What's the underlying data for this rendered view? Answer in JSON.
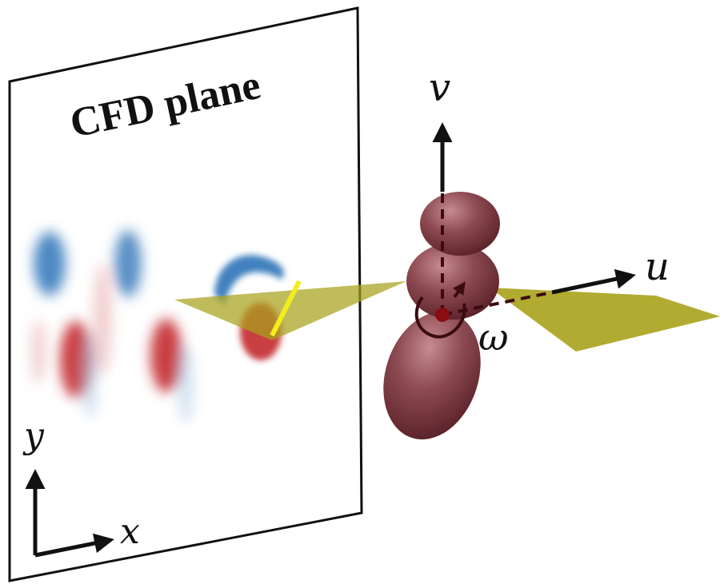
{
  "plane": {
    "title": "CFD plane"
  },
  "axes_2d": {
    "x_label": "x",
    "y_label": "y"
  },
  "body_frame": {
    "u_label": "u",
    "v_label": "v",
    "omega_label": "ω"
  },
  "colors": {
    "vortex_positive": "#c0272d",
    "vortex_negative": "#1f6fb5",
    "fin": "#b3aa1e",
    "body": "#7a3a40",
    "highlight_edge": "#f2ee1c"
  }
}
